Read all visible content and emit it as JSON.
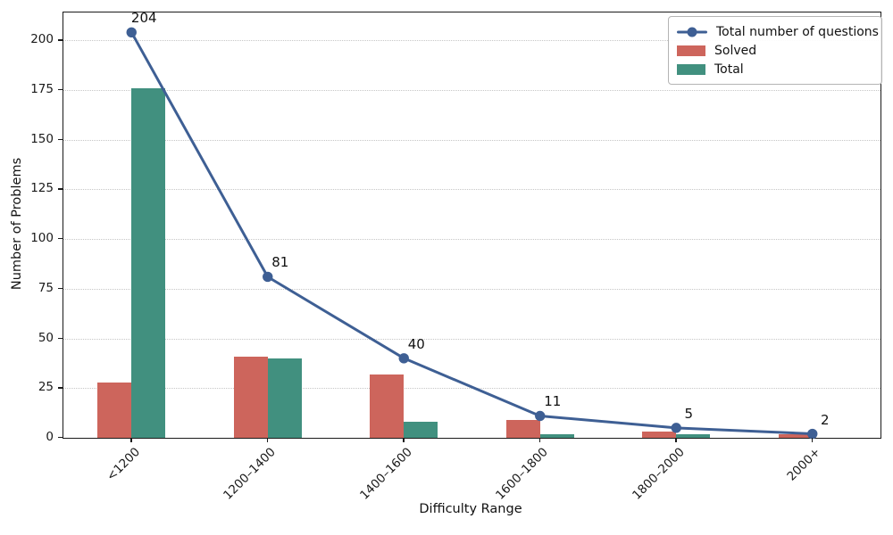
{
  "chart_data": {
    "type": "bar",
    "title": "",
    "xlabel": "Difficulty Range",
    "ylabel": "Number of Problems",
    "categories": [
      "<1200",
      "1200–1400",
      "1400–1600",
      "1600–1800",
      "1800–2000",
      "2000+"
    ],
    "line_series": {
      "name": "Total number of questions",
      "type": "line",
      "values": [
        204,
        81,
        40,
        11,
        5,
        2
      ],
      "data_labels": [
        "204",
        "81",
        "40",
        "11",
        "5",
        "2"
      ],
      "color": "#3e5f94"
    },
    "series": [
      {
        "name": "Solved",
        "type": "bar",
        "values": [
          28,
          41,
          32,
          9,
          3,
          2
        ],
        "color": "#cd655c"
      },
      {
        "name": "Total",
        "type": "bar",
        "values": [
          176,
          40,
          8,
          2,
          2,
          0
        ],
        "color": "#41907f"
      }
    ],
    "ylim": [
      0,
      214
    ],
    "yticks": [
      0,
      25,
      50,
      75,
      100,
      125,
      150,
      175,
      200
    ],
    "grid": "horizontal dotted",
    "grid_color": "#c6c6c6",
    "legend_position": "upper right",
    "legend_entries": [
      "Total number of questions",
      "Solved",
      "Total"
    ]
  }
}
